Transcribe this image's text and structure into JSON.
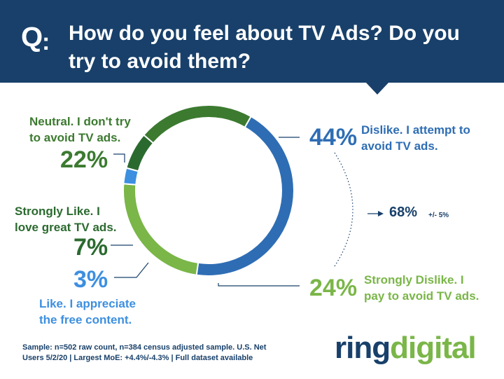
{
  "header": {
    "q_label": "Q",
    "q_colon": ":",
    "question": "How do you feel about TV Ads? Do you try to avoid them?"
  },
  "chart_data": {
    "type": "pie",
    "donut": true,
    "slices": [
      {
        "label": "Dislike. I attempt to avoid TV ads.",
        "pct_label": "44%",
        "value": 44,
        "color": "#2e6db4"
      },
      {
        "label": "Strongly Dislike. I pay to avoid TV ads.",
        "pct_label": "24%",
        "value": 24,
        "color": "#7ab648"
      },
      {
        "label": "Like. I appreciate the free content.",
        "pct_label": "3%",
        "value": 3,
        "color": "#3d8fe0"
      },
      {
        "label": "Strongly Like. I love great TV ads.",
        "pct_label": "7%",
        "value": 7,
        "color": "#2b6a2f"
      },
      {
        "label": "Neutral. I don't try to avoid TV ads.",
        "pct_label": "22%",
        "value": 22,
        "color": "#3c7a30"
      }
    ],
    "summary": {
      "value": "68%",
      "note": "+/- 5%"
    }
  },
  "labels": {
    "dislike": {
      "pct": "44%",
      "line1": "Dislike. I attempt to",
      "line2": "avoid TV ads."
    },
    "strongly_dislike": {
      "pct": "24%",
      "line1": "Strongly Dislike. I",
      "line2": "pay to avoid TV ads."
    },
    "like": {
      "pct": "3%",
      "line1": "Like. I appreciate",
      "line2": "the free content."
    },
    "strongly_like": {
      "pct": "7%",
      "line1": "Strongly Like. I",
      "line2": "love great TV ads."
    },
    "neutral": {
      "pct": "22%",
      "line1": "Neutral. I don't try",
      "line2": "to avoid TV ads."
    }
  },
  "footer": {
    "note_line1": "Sample: n=502 raw count, n=384 census adjusted sample. U.S. Net",
    "note_line2": "Users 5/2/20 | Largest MoE: +4.4%/-4.3% | Full dataset available",
    "logo_part1": "ring",
    "logo_part2": "digital"
  },
  "colors": {
    "header_bg": "#18406a",
    "dislike": "#2e6db4",
    "strongly_dislike": "#7ab648",
    "like": "#3d8fe0",
    "strongly_like": "#2b6a2f",
    "neutral": "#3c7a30",
    "dark_text": "#2d6a2a"
  }
}
